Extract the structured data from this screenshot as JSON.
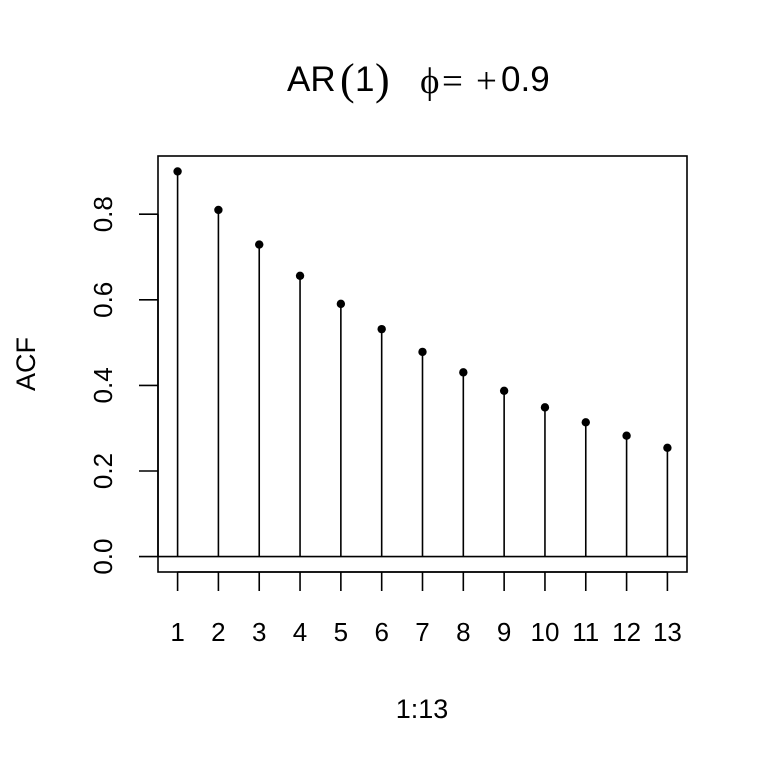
{
  "chart_data": {
    "type": "line",
    "title": {
      "model": "AR",
      "order": "1",
      "phi_symbol": "ϕ",
      "equals": "=",
      "sign": "+",
      "value": "0.9"
    },
    "xlabel": "1:13",
    "ylabel": "ACF",
    "x": [
      1,
      2,
      3,
      4,
      5,
      6,
      7,
      8,
      9,
      10,
      11,
      12,
      13
    ],
    "values": [
      0.9,
      0.81,
      0.729,
      0.6561,
      0.59049,
      0.531441,
      0.4782969,
      0.43046721,
      0.387420489,
      0.3486784401,
      0.31381059609,
      0.282429536481,
      0.2541865828329
    ],
    "xticks": [
      "1",
      "2",
      "3",
      "4",
      "5",
      "6",
      "7",
      "8",
      "9",
      "10",
      "11",
      "12",
      "13"
    ],
    "yticks": [
      "0.0",
      "0.2",
      "0.4",
      "0.6",
      "0.8"
    ],
    "ytick_values": [
      0.0,
      0.2,
      0.4,
      0.6,
      0.8
    ],
    "xlim": [
      0.52,
      13.48
    ],
    "ylim": [
      -0.036,
      0.936
    ],
    "grid": false,
    "legend": "none",
    "reference_line": 0,
    "color": "#000000"
  }
}
